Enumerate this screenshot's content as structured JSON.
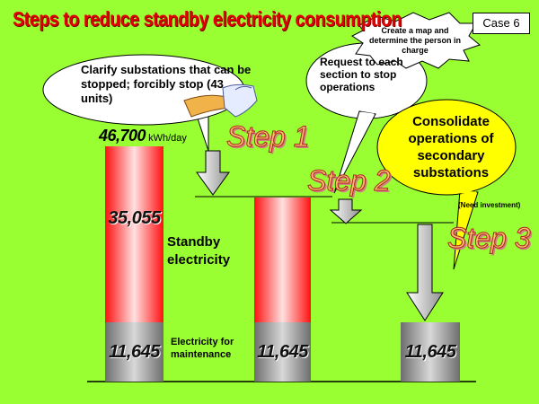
{
  "title": "Steps to reduce standby electricity consumption",
  "case_label": "Case 6",
  "callouts": {
    "step1": "Clarify substations that can be stopped; forcibly stop (43 units)",
    "map": "Create a map and determine the person in charge",
    "step2": "Request to each section to stop operations",
    "step3": "Consolidate operations of secondary substations",
    "investment": "(Need investment)"
  },
  "steps": [
    "Step 1",
    "Step 2",
    "Step 3"
  ],
  "total": {
    "value": "46,700",
    "unit": "kWh/day"
  },
  "labels": {
    "standby": "Standby electricity",
    "maintenance": "Electricity for maintenance"
  },
  "bars": [
    {
      "standby": 35055,
      "standby_label": "35,055",
      "maintenance": 11645,
      "maintenance_label": "11,645"
    },
    {
      "standby": null,
      "standby_label": "",
      "maintenance": 11645,
      "maintenance_label": "11,645"
    },
    {
      "standby": null,
      "standby_label": "",
      "maintenance": 11645,
      "maintenance_label": "11,645"
    }
  ],
  "colors": {
    "background": "#99ff33",
    "title": "#e00000",
    "standby_bar": "#ff2a2a",
    "maintenance_bar": "#8c8c8c",
    "step3_bubble": "#ffff00"
  }
}
